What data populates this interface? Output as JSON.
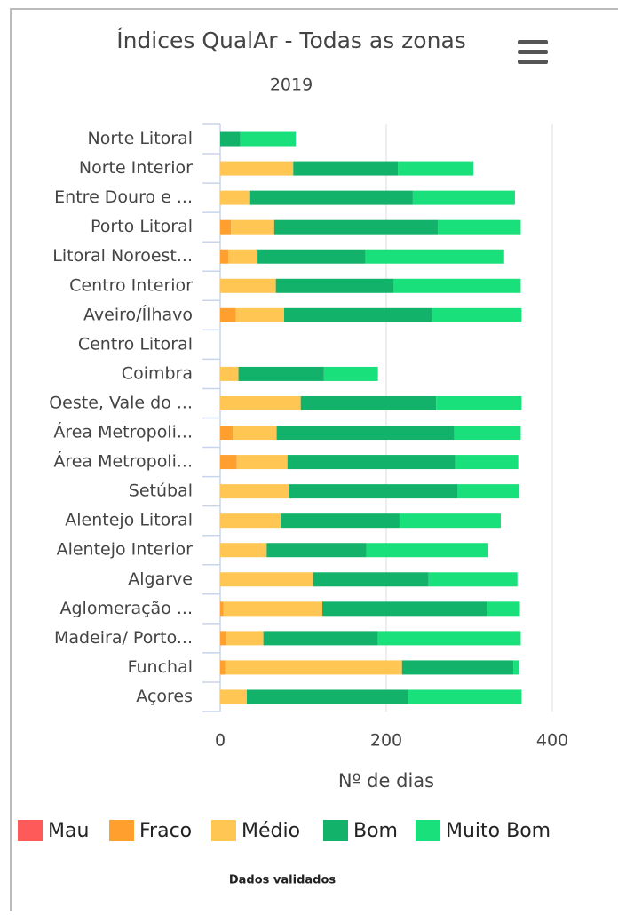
{
  "chart_data": {
    "type": "stacked_bar_horizontal",
    "title": "Índices QualAr - Todas as zonas",
    "subtitle": "2019",
    "categories": [
      "Norte Litoral",
      "Norte Interior",
      "Entre Douro e ...",
      "Porto Litoral",
      "Litoral Noroest...",
      "Centro Interior",
      "Aveiro/Ílhavo",
      "Centro Litoral",
      "Coimbra",
      "Oeste, Vale do ...",
      "Área Metropoli...",
      "Área Metropoli...",
      "Setúbal",
      "Alentejo Litoral",
      "Alentejo Interior",
      "Algarve",
      "Aglomeração ...",
      "Madeira/ Porto...",
      "Funchal",
      "Açores"
    ],
    "series": [
      {
        "name": "Mau",
        "color": "#ff5a5a",
        "values": [
          0,
          0,
          0,
          0,
          0,
          0,
          0,
          0,
          0,
          0,
          0,
          0,
          0,
          0,
          0,
          0,
          0,
          0,
          0,
          0
        ]
      },
      {
        "name": "Fraco",
        "color": "#ff9f2e",
        "values": [
          0,
          0,
          0,
          13,
          10,
          0,
          19,
          0,
          0,
          0,
          15,
          20,
          0,
          0,
          0,
          0,
          4,
          7,
          6,
          0
        ]
      },
      {
        "name": "Médio",
        "color": "#ffc654",
        "values": [
          0,
          88,
          35,
          52,
          35,
          67,
          58,
          0,
          22,
          97,
          53,
          61,
          83,
          73,
          56,
          112,
          119,
          45,
          213,
          32
        ]
      },
      {
        "name": "Bom",
        "color": "#13b26b",
        "values": [
          24,
          126,
          197,
          197,
          130,
          142,
          178,
          0,
          103,
          163,
          214,
          202,
          203,
          143,
          120,
          139,
          198,
          138,
          134,
          194
        ]
      },
      {
        "name": "Muito Bom",
        "color": "#19e07a",
        "values": [
          67,
          91,
          123,
          100,
          167,
          153,
          108,
          0,
          65,
          103,
          80,
          76,
          74,
          122,
          147,
          107,
          40,
          172,
          7,
          137
        ]
      }
    ],
    "xlabel": "Nº de dias",
    "xlim": [
      0,
      400
    ],
    "xticks": [
      0,
      200,
      400
    ],
    "grid": true,
    "legend": "bottom",
    "credit": "Dados validados"
  }
}
